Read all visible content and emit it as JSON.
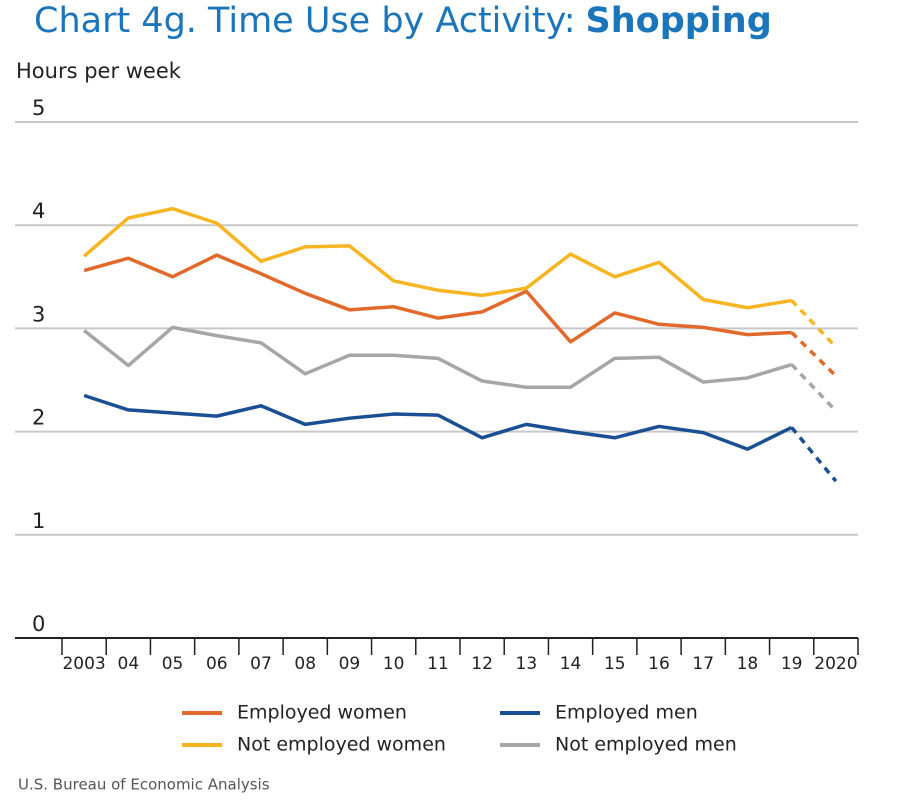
{
  "chart_data": {
    "type": "line",
    "title": [
      "Chart 4g. Time Use by Activity:",
      "Shopping"
    ],
    "y_label": "Hours per week",
    "source": "U.S. Bureau of Economic Analysis",
    "categories": [
      "2003",
      "04",
      "05",
      "06",
      "07",
      "08",
      "09",
      "10",
      "11",
      "12",
      "13",
      "14",
      "15",
      "16",
      "17",
      "18",
      "19",
      "2020"
    ],
    "ylim": [
      0,
      5
    ],
    "yticks": [
      0,
      1,
      2,
      3,
      4,
      5
    ],
    "grid": true,
    "series": [
      {
        "name": "Employed women",
        "color": "#e2692c",
        "values": [
          3.56,
          3.68,
          3.5,
          3.71,
          3.53,
          3.34,
          3.18,
          3.21,
          3.1,
          3.16,
          3.36,
          2.87,
          3.15,
          3.04,
          3.01,
          2.94,
          2.96,
          2.54
        ]
      },
      {
        "name": "Not employed women",
        "color": "#f7b521",
        "values": [
          3.7,
          4.07,
          4.16,
          4.02,
          3.65,
          3.79,
          3.8,
          3.46,
          3.37,
          3.32,
          3.39,
          3.72,
          3.5,
          3.64,
          3.28,
          3.2,
          3.27,
          2.82
        ]
      },
      {
        "name": "Employed men",
        "color": "#1a4f93",
        "values": [
          2.35,
          2.21,
          2.18,
          2.15,
          2.25,
          2.07,
          2.13,
          2.17,
          2.16,
          1.94,
          2.07,
          2.0,
          1.94,
          2.05,
          1.99,
          1.83,
          2.04,
          1.52
        ]
      },
      {
        "name": "Not employed men",
        "color": "#a6a6a6",
        "values": [
          2.98,
          2.64,
          3.01,
          2.93,
          2.86,
          2.56,
          2.74,
          2.74,
          2.71,
          2.49,
          2.43,
          2.43,
          2.71,
          2.72,
          2.48,
          2.52,
          2.65,
          2.2
        ]
      }
    ]
  }
}
